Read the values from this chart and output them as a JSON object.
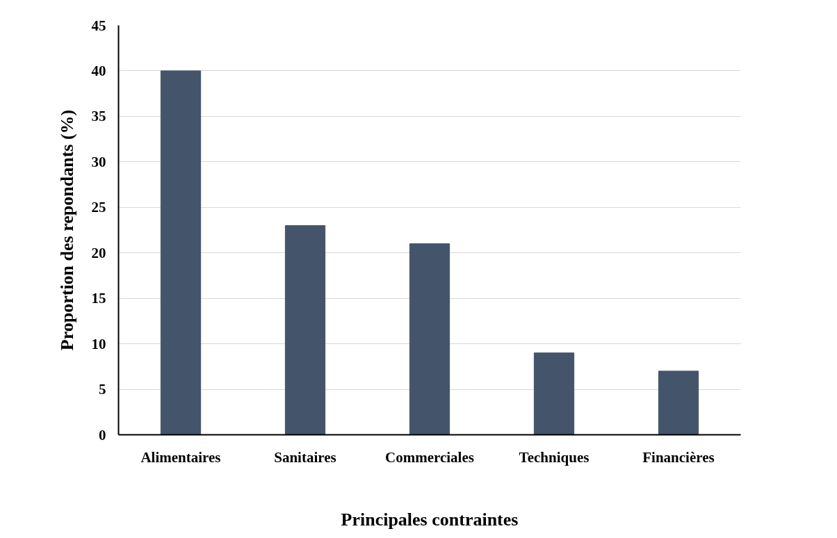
{
  "chart_data": {
    "type": "bar",
    "xlabel": "Principales contraintes",
    "ylabel": "Proportion des repondants (%)",
    "categories": [
      "Alimentaires",
      "Sanitaires",
      "Commerciales",
      "Techniques",
      "Financières"
    ],
    "values": [
      40,
      23,
      21,
      9,
      7
    ],
    "color": "#44546a",
    "ylim": [
      0,
      45
    ],
    "yticks": [
      0,
      5,
      10,
      15,
      20,
      25,
      30,
      35,
      40,
      45
    ],
    "grid": "y"
  }
}
